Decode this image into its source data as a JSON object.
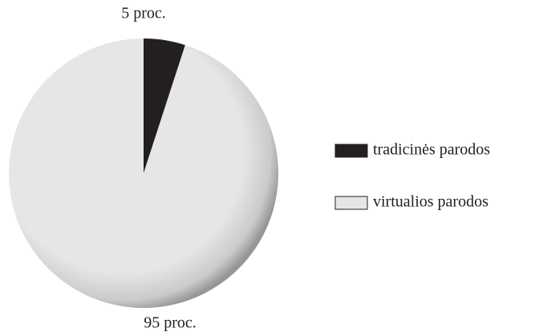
{
  "chart_data": {
    "type": "pie",
    "categories": [
      "tradicinės parodos",
      "virtualios parodos"
    ],
    "values": [
      5,
      95
    ],
    "value_labels": [
      "5 proc.",
      "95 proc."
    ],
    "colors": [
      "#231f20",
      "#e6e6e6"
    ]
  }
}
